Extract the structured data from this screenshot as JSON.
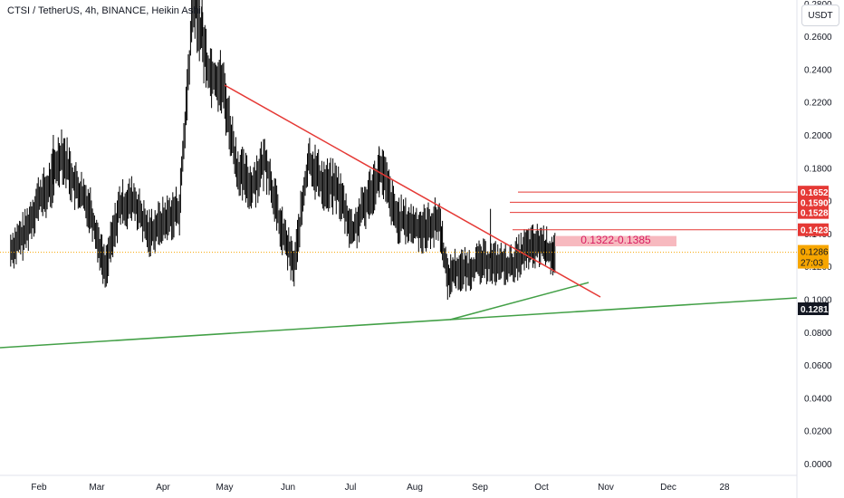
{
  "header": {
    "title": "CTSI / TetherUS, 4h, BINANCE, Heikin Ashi",
    "unit": "USDT"
  },
  "colors": {
    "background": "#ffffff",
    "candles": "#000000",
    "resistance": "#e53935",
    "support": "#43a047",
    "zone_fill": "#f7b9bf",
    "zone_text": "#d81b60",
    "last_price_line": "#f7a600",
    "axis_text": "#131722"
  },
  "chart_data": {
    "type": "line",
    "title": "CTSI / TetherUS, 4h, BINANCE, Heikin Ashi",
    "y_unit": "USDT",
    "ylim": [
      0,
      0.29
    ],
    "y_ticks": [
      "0.0000",
      "0.0200",
      "0.0400",
      "0.0600",
      "0.0800",
      "0.1000",
      "0.1200",
      "0.1400",
      "0.1600",
      "0.1800",
      "0.2000",
      "0.2200",
      "0.2400",
      "0.2600",
      "0.2800"
    ],
    "x_ticks": [
      "Feb",
      "Mar",
      "Apr",
      "May",
      "Jun",
      "Jul",
      "Aug",
      "Sep",
      "Oct",
      "Nov",
      "Dec",
      "28"
    ],
    "grid": false,
    "series": [
      {
        "x": [
          "Jan 15",
          "Jan 22",
          "Jan 29",
          "Feb 5",
          "Feb 12",
          "Feb 19",
          "Feb 26",
          "Mar 5",
          "Mar 12",
          "Mar 19",
          "Mar 26",
          "Apr 2",
          "Apr 9",
          "Apr 16",
          "Apr 23",
          "Apr 30",
          "May 7",
          "May 14",
          "May 21",
          "May 28",
          "Jun 4",
          "Jun 11",
          "Jun 18",
          "Jun 25",
          "Jul 2",
          "Jul 9",
          "Jul 16",
          "Jul 23",
          "Jul 30",
          "Aug 6",
          "Aug 13",
          "Aug 17",
          "Aug 20",
          "Aug 27",
          "Sep 3",
          "Sep 10",
          "Sep 17",
          "Sep 24",
          "Oct 1",
          "Oct 5",
          "Oct 8"
        ],
        "values": [
          0.13,
          0.14,
          0.162,
          0.165,
          0.19,
          0.168,
          0.155,
          0.118,
          0.156,
          0.16,
          0.14,
          0.148,
          0.155,
          0.285,
          0.24,
          0.23,
          0.18,
          0.168,
          0.185,
          0.145,
          0.12,
          0.185,
          0.17,
          0.168,
          0.14,
          0.16,
          0.18,
          0.15,
          0.145,
          0.143,
          0.148,
          0.112,
          0.118,
          0.118,
          0.123,
          0.122,
          0.12,
          0.13,
          0.133,
          0.128,
          0.129
        ]
      }
    ],
    "annotations": {
      "horizontal_levels": [
        "0.1652",
        "0.1590",
        "0.1528",
        "0.1423"
      ],
      "zone_label": "0.1322-0.1385",
      "last_price": "0.1286",
      "countdown": "27:03",
      "crosshair_price": "0.1281"
    },
    "trendlines": {
      "resistance": [
        [
          "May 1",
          0.249
        ],
        [
          "Oct 25",
          0.121
        ]
      ],
      "short_support": [
        [
          "Aug 18",
          0.107
        ],
        [
          "Oct 20",
          0.128
        ]
      ],
      "long_support": [
        [
          "Jan 1",
          0.0895
        ],
        [
          "Jan 5",
          0.119
        ]
      ]
    }
  }
}
